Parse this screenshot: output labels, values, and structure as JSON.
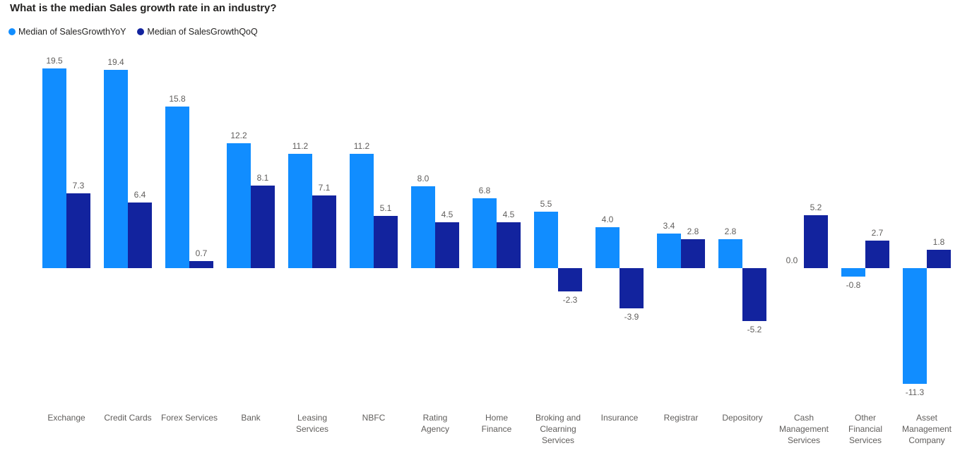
{
  "title": "What is the median Sales growth rate in an industry?",
  "chart_data": {
    "type": "bar",
    "title": "What is the median Sales growth rate in an industry?",
    "legend_position": "top-left",
    "grid": false,
    "axis_lines": false,
    "value_labels": true,
    "value_label_color": "#605E5C",
    "category_label_color": "#605E5C",
    "baseline": 0,
    "ylim": [
      -12,
      20
    ],
    "categories": [
      "Exchange",
      "Credit Cards",
      "Forex Services",
      "Bank",
      "Leasing Services",
      "NBFC",
      "Rating Agency",
      "Home Finance",
      "Broking and Clearning Services",
      "Insurance",
      "Registrar",
      "Depository",
      "Cash Management Services",
      "Other Financial Services",
      "Asset Management Company"
    ],
    "category_labels": [
      "Exchange",
      "Credit Cards",
      "Forex Services",
      "Bank",
      "Leasing\nServices",
      "NBFC",
      "Rating\nAgency",
      "Home\nFinance",
      "Broking and\nClearning\nServices",
      "Insurance",
      "Registrar",
      "Depository",
      "Cash\nManagement\nServices",
      "Other\nFinancial\nServices",
      "Asset\nManagement\nCompany"
    ],
    "series": [
      {
        "name": "Median of SalesGrowthYoY",
        "color": "#118DFF",
        "values": [
          19.5,
          19.4,
          15.8,
          12.2,
          11.2,
          11.2,
          8.0,
          6.8,
          5.5,
          4.0,
          3.4,
          2.8,
          0.0,
          -0.8,
          -11.3
        ]
      },
      {
        "name": "Median of SalesGrowthQoQ",
        "color": "#12239E",
        "values": [
          7.3,
          6.4,
          0.7,
          8.1,
          7.1,
          5.1,
          4.5,
          4.5,
          -2.3,
          -3.9,
          2.8,
          -5.2,
          5.2,
          2.7,
          1.8
        ]
      }
    ]
  }
}
